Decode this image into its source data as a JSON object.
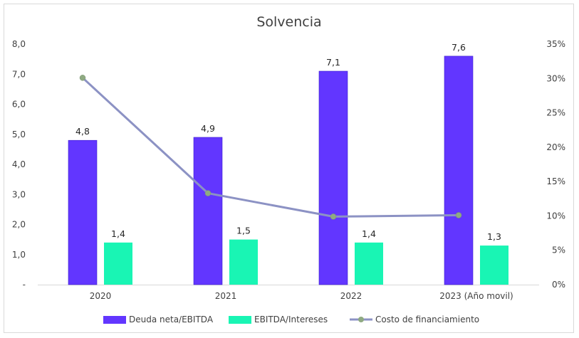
{
  "chart_data": {
    "type": "bar",
    "title": "Solvencia",
    "categories": [
      "2020",
      "2021",
      "2022",
      "2023 (Año movil)"
    ],
    "series": [
      {
        "name": "Deuda neta/EBITDA",
        "type": "bar",
        "axis": "left",
        "color": "#6236ff",
        "values": [
          4.8,
          4.9,
          7.1,
          7.6
        ],
        "labels": [
          "4,8",
          "4,9",
          "7,1",
          "7,6"
        ]
      },
      {
        "name": "EBITDA/Intereses",
        "type": "bar",
        "axis": "left",
        "color": "#19f5b4",
        "values": [
          1.4,
          1.5,
          1.4,
          1.3
        ],
        "labels": [
          "1,4",
          "1,5",
          "1,4",
          "1,3"
        ]
      },
      {
        "name": "Costo de financiamiento",
        "type": "line",
        "axis": "right",
        "color": "#8c92c4",
        "marker_color": "#8faa82",
        "values": [
          30.1,
          13.3,
          9.9,
          10.1
        ]
      }
    ],
    "left_axis": {
      "ylim": [
        0,
        8
      ],
      "ticks": [
        0,
        1,
        2,
        3,
        4,
        5,
        6,
        7,
        8
      ],
      "tick_labels": [
        "-",
        "1,0",
        "2,0",
        "3,0",
        "4,0",
        "5,0",
        "6,0",
        "7,0",
        "8,0"
      ]
    },
    "right_axis": {
      "ylim": [
        0,
        35
      ],
      "ticks": [
        0,
        5,
        10,
        15,
        20,
        25,
        30,
        35
      ],
      "tick_labels": [
        "0%",
        "5%",
        "10%",
        "15%",
        "20%",
        "25%",
        "30%",
        "35%"
      ]
    },
    "grid": false,
    "legend_position": "bottom"
  }
}
